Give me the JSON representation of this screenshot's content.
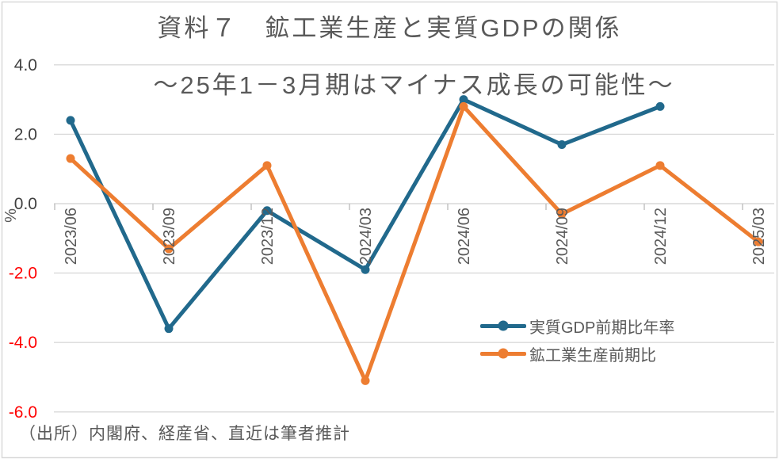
{
  "chart": {
    "title": "資料７　鉱工業生産と実質GDPの関係",
    "subtitle": "～25年1－3月期はマイナス成長の可能性～",
    "source": "（出所）内閣府、経産省、直近は筆者推計"
  },
  "chart_data": {
    "type": "line",
    "categories": [
      "2023/06",
      "2023/09",
      "2023/12",
      "2024/03",
      "2024/06",
      "2024/09",
      "2024/12",
      "2025/03"
    ],
    "series": [
      {
        "name": "実質GDP前期比年率",
        "color": "#21698C",
        "marker": "circle",
        "values": [
          2.4,
          -3.6,
          -0.2,
          -1.9,
          3.0,
          1.7,
          2.8,
          null
        ]
      },
      {
        "name": "鉱工業生産前期比",
        "color": "#ED7D31",
        "marker": "circle",
        "values": [
          1.3,
          -1.3,
          1.1,
          -5.1,
          2.8,
          -0.3,
          1.1,
          -1.1
        ]
      }
    ],
    "yticks": [
      4.0,
      2.0,
      0.0,
      -2.0,
      -4.0,
      -6.0
    ],
    "ylim": [
      -6.5,
      4.3
    ],
    "ylabel": "%",
    "grid": true,
    "legend_position": "center-right",
    "colors": {
      "grid": "#D9D9D9",
      "border": "#D9D9D9",
      "x_tick": "#BFBFBF",
      "axis_label_positive": "#404040",
      "axis_label_negative": "#FF0000",
      "text": "#595959"
    }
  }
}
